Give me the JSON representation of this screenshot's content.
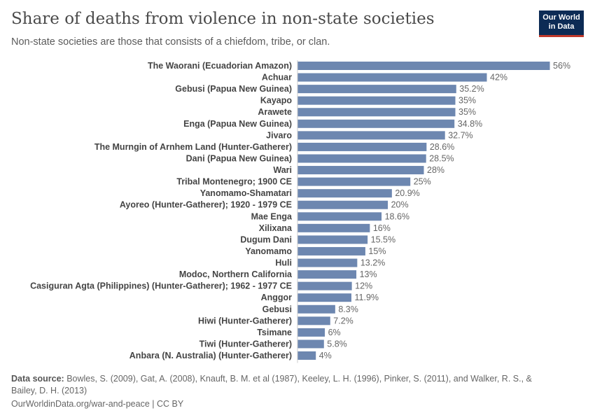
{
  "title": "Share of deaths from violence in non-state societies",
  "subtitle": "Non-state societies are those that consists of a chiefdom, tribe, or clan.",
  "logo": {
    "line1": "Our World",
    "line2": "in Data"
  },
  "footer": {
    "source_label": "Data source:",
    "source_text": " Bowles, S. (2009), Gat, A. (2008), Knauft, B. M. et al (1987), Keeley, L. H. (1996), Pinker, S. (2011), and Walker, R. S., & Bailey, D. H. (2013)",
    "url": "OurWorldinData.org/war-and-peace | CC BY"
  },
  "chart_data": {
    "type": "bar",
    "orientation": "horizontal",
    "color": "#6d87b0",
    "unit": "%",
    "xlim": [
      0,
      56
    ],
    "grid": false,
    "categories": [
      "The Waorani (Ecuadorian Amazon)",
      "Achuar",
      "Gebusi (Papua New Guinea)",
      "Kayapo",
      "Arawete",
      "Enga (Papua New Guinea)",
      "Jivaro",
      "The Murngin of Arnhem Land (Hunter-Gatherer)",
      "Dani (Papua New Guinea)",
      "Wari",
      "Tribal Montenegro; 1900 CE",
      "Yanomamo-Shamatari",
      "Ayoreo (Hunter-Gatherer); 1920 - 1979 CE",
      "Mae Enga",
      "Xilixana",
      "Dugum Dani",
      "Yanomamo",
      "Huli",
      "Modoc, Northern California",
      "Casiguran Agta (Philippines) (Hunter-Gatherer); 1962 - 1977 CE",
      "Anggor",
      "Gebusi",
      "Hiwi (Hunter-Gatherer)",
      "Tsimane",
      "Tiwi (Hunter-Gatherer)",
      "Anbara (N. Australia) (Hunter-Gatherer)"
    ],
    "values": [
      56,
      42,
      35.2,
      35,
      35,
      34.8,
      32.7,
      28.6,
      28.5,
      28,
      25,
      20.9,
      20,
      18.6,
      16,
      15.5,
      15,
      13.2,
      13,
      12,
      11.9,
      8.3,
      7.2,
      6,
      5.8,
      4
    ],
    "labels": [
      "56%",
      "42%",
      "35.2%",
      "35%",
      "35%",
      "34.8%",
      "32.7%",
      "28.6%",
      "28.5%",
      "28%",
      "25%",
      "20.9%",
      "20%",
      "18.6%",
      "16%",
      "15.5%",
      "15%",
      "13.2%",
      "13%",
      "12%",
      "11.9%",
      "8.3%",
      "7.2%",
      "6%",
      "5.8%",
      "4%"
    ]
  }
}
